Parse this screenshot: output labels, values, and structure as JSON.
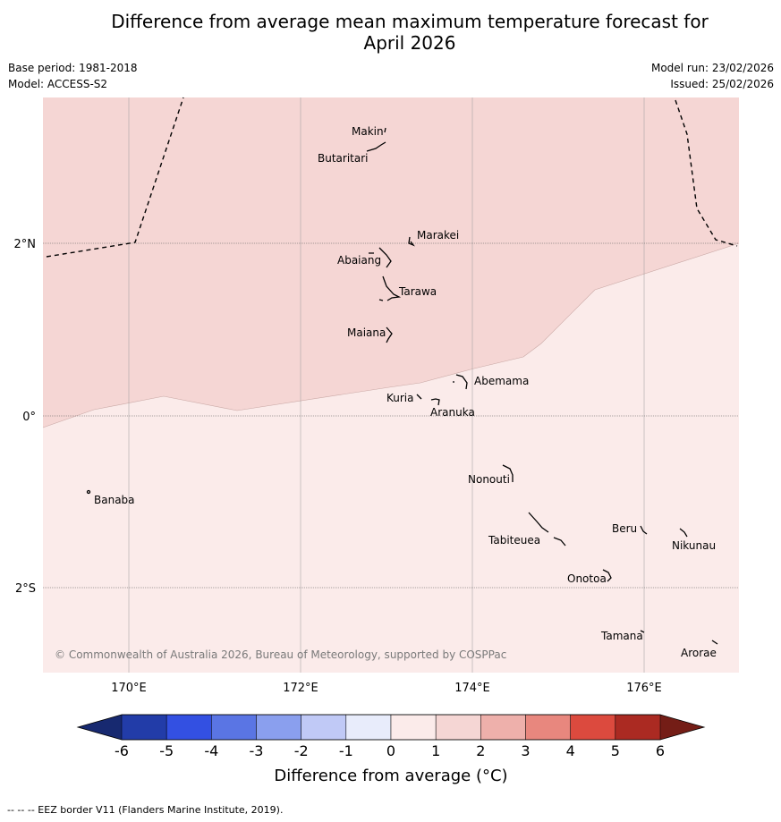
{
  "header": {
    "title_line1": "Difference from average mean maximum temperature forecast for",
    "title_line2": "April 2026",
    "base_period": "Base period: 1981-2018",
    "model": "Model: ACCESS-S2",
    "model_run": "Model run: 23/02/2026",
    "issued": "Issued: 25/02/2026"
  },
  "map": {
    "axes": {
      "lon_labels": [
        "170°E",
        "172°E",
        "174°E",
        "176°E"
      ],
      "lat_labels": [
        "2°N",
        "0°",
        "2°S"
      ]
    },
    "places": [
      {
        "name": "Makin"
      },
      {
        "name": "Butaritari"
      },
      {
        "name": "Marakei"
      },
      {
        "name": "Abaiang"
      },
      {
        "name": "Tarawa"
      },
      {
        "name": "Maiana"
      },
      {
        "name": "Abemama"
      },
      {
        "name": "Kuria"
      },
      {
        "name": "Aranuka"
      },
      {
        "name": "Banaba"
      },
      {
        "name": "Nonouti"
      },
      {
        "name": "Beru"
      },
      {
        "name": "Nikunau"
      },
      {
        "name": "Tabiteuea"
      },
      {
        "name": "Onotoa"
      },
      {
        "name": "Tamana"
      },
      {
        "name": "Arorae"
      }
    ],
    "anomaly_zones": [
      {
        "range": "1 to 2",
        "color": "#f5d6d4"
      },
      {
        "range": "0 to 1",
        "color": "#fbebea"
      }
    ],
    "copyright": "© Commonwealth of Australia 2026, Bureau of Meteorology, supported by COSPPac"
  },
  "colorbar": {
    "ticks": [
      "-6",
      "-5",
      "-4",
      "-3",
      "-2",
      "-1",
      "0",
      "1",
      "2",
      "3",
      "4",
      "5",
      "6"
    ],
    "colors": [
      "#223ca8",
      "#3350e2",
      "#5a75e4",
      "#8a9fee",
      "#c0c9f6",
      "#e8ecfb",
      "#fbebea",
      "#f5d6d4",
      "#eeb0ab",
      "#e8877e",
      "#dc4a3e",
      "#ab2a22"
    ],
    "under_color": "#172970",
    "over_color": "#741d16",
    "label": "Difference from average (°C)"
  },
  "footer": {
    "legend_text": "--  --  -- EEZ border V11 (Flanders Marine Institute, 2019)."
  }
}
